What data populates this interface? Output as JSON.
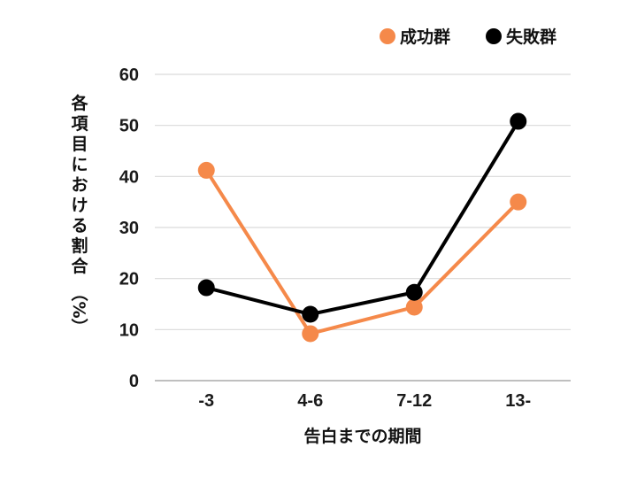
{
  "chart_data": {
    "type": "line",
    "title": "",
    "xlabel": "告白までの期間",
    "ylabel": "各項目における割合（%）",
    "categories": [
      "-3",
      "4-6",
      "7-12",
      "13-"
    ],
    "series": [
      {
        "name": "成功群",
        "color": "#F5894A",
        "values": [
          41.2,
          9.2,
          14.4,
          35.0
        ]
      },
      {
        "name": "失敗群",
        "color": "#000000",
        "values": [
          18.2,
          13.0,
          17.3,
          50.8
        ]
      }
    ],
    "ylim": [
      0,
      60
    ],
    "yticks": [
      0,
      10,
      20,
      30,
      40,
      50,
      60
    ],
    "grid": true,
    "legend_position": "top-right"
  },
  "legend": {
    "items": [
      {
        "label": "成功群",
        "color": "#F5894A"
      },
      {
        "label": "失敗群",
        "color": "#000000"
      }
    ]
  },
  "axes": {
    "x_title": "告白までの期間",
    "y_title_chars": [
      "各",
      "項",
      "目",
      "に",
      "お",
      "け",
      "る",
      "割",
      "合",
      "（",
      "%",
      "）"
    ]
  },
  "colors": {
    "grid": "#d9d9d9",
    "axis": "#bfbfbf",
    "success": "#F5894A",
    "failure": "#000000"
  }
}
